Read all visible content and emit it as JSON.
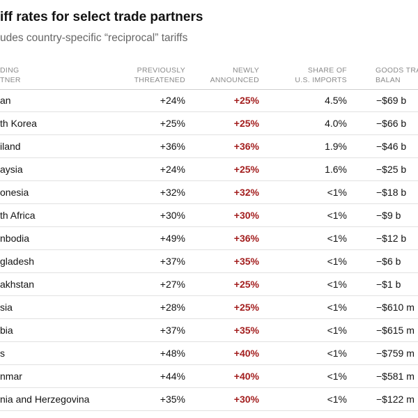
{
  "title": "iff rates for select trade partners",
  "subtitle": "udes country-specific “reciprocal” tariffs",
  "columns": {
    "partner": [
      "DING",
      "TNER"
    ],
    "previously": [
      "PREVIOUSLY",
      "THREATENED"
    ],
    "newly": [
      "NEWLY",
      "ANNOUNCED"
    ],
    "share": [
      "SHARE OF",
      "U.S. IMPORTS"
    ],
    "balance": [
      "GOODS TRA",
      "BALAN"
    ]
  },
  "colors": {
    "accent": "#a31e1e",
    "muted": "#8a8a8a",
    "rule": "#e1e1e1"
  },
  "rows": [
    {
      "partner": "an",
      "previous": "+24%",
      "newly": "+25%",
      "share": "4.5%",
      "balance": "−$69 b"
    },
    {
      "partner": "th Korea",
      "previous": "+25%",
      "newly": "+25%",
      "share": "4.0%",
      "balance": "−$66 b"
    },
    {
      "partner": "iland",
      "previous": "+36%",
      "newly": "+36%",
      "share": "1.9%",
      "balance": "−$46 b"
    },
    {
      "partner": "aysia",
      "previous": "+24%",
      "newly": "+25%",
      "share": "1.6%",
      "balance": "−$25 b"
    },
    {
      "partner": "onesia",
      "previous": "+32%",
      "newly": "+32%",
      "share": "<1%",
      "balance": "−$18 b"
    },
    {
      "partner": "th Africa",
      "previous": "+30%",
      "newly": "+30%",
      "share": "<1%",
      "balance": "−$9 b"
    },
    {
      "partner": "nbodia",
      "previous": "+49%",
      "newly": "+36%",
      "share": "<1%",
      "balance": "−$12 b"
    },
    {
      "partner": "gladesh",
      "previous": "+37%",
      "newly": "+35%",
      "share": "<1%",
      "balance": "−$6 b"
    },
    {
      "partner": "akhstan",
      "previous": "+27%",
      "newly": "+25%",
      "share": "<1%",
      "balance": "−$1 b"
    },
    {
      "partner": "sia",
      "previous": "+28%",
      "newly": "+25%",
      "share": "<1%",
      "balance": "−$610 m"
    },
    {
      "partner": "bia",
      "previous": "+37%",
      "newly": "+35%",
      "share": "<1%",
      "balance": "−$615 m"
    },
    {
      "partner": "s",
      "previous": "+48%",
      "newly": "+40%",
      "share": "<1%",
      "balance": "−$759 m"
    },
    {
      "partner": "nmar",
      "previous": "+44%",
      "newly": "+40%",
      "share": "<1%",
      "balance": "−$581 m"
    },
    {
      "partner": "nia and Herzegovina",
      "previous": "+35%",
      "newly": "+30%",
      "share": "<1%",
      "balance": "−$122 m"
    }
  ]
}
